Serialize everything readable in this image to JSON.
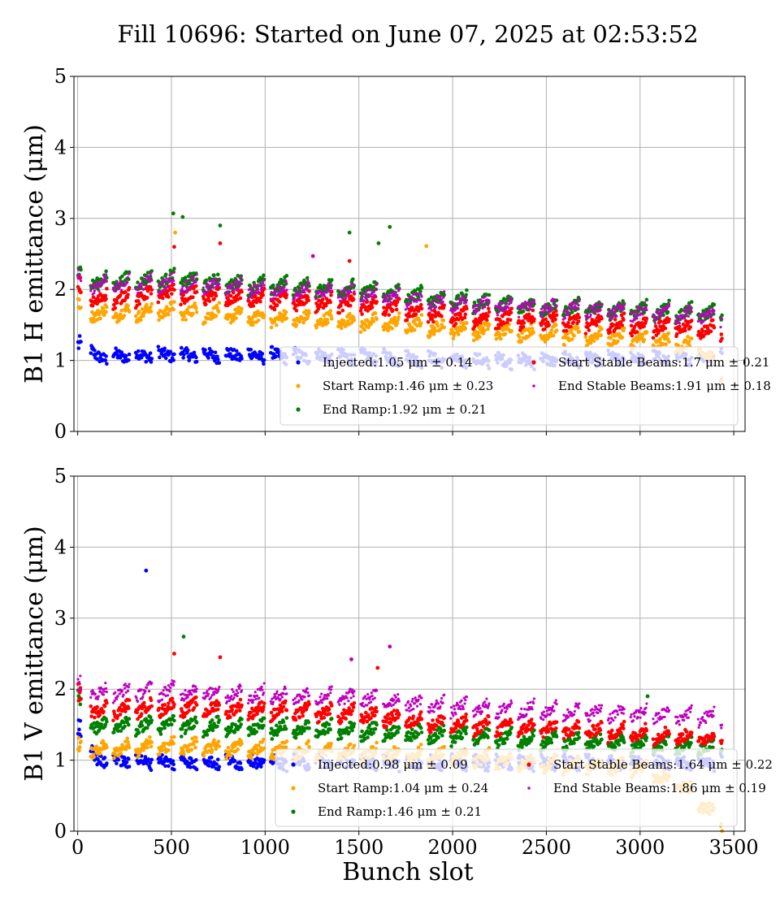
{
  "title": "Fill 10696: Started on June 07, 2025 at 02:53:52",
  "xlabel": "Bunch slot",
  "colors": {
    "Injected": "#0000ff",
    "Start Ramp": "#ffa500",
    "End Ramp": "#008000",
    "Start Stable Beams": "#ff0000",
    "End Stable Beams": "#bf00bf"
  },
  "chart_data": [
    {
      "type": "scatter",
      "ylabel": "B1 H emittance (μm)",
      "xlim": [
        -20,
        3560
      ],
      "ylim": [
        0,
        5
      ],
      "xticks": [
        0,
        500,
        1000,
        1500,
        2000,
        2500,
        3000,
        3500
      ],
      "yticks": [
        0,
        1,
        2,
        3,
        4,
        5
      ],
      "legend_position": "lower-right",
      "x_tick_labels_shown": false,
      "series": [
        {
          "name": "Injected",
          "legend": "Injected:1.05 μm ± 0.14",
          "mean": 1.05,
          "std": 0.14,
          "trend": [
            [
              0,
              1.22
            ],
            [
              100,
              1.05
            ],
            [
              500,
              1.08
            ],
            [
              1000,
              1.07
            ],
            [
              1500,
              1.05
            ],
            [
              2000,
              1.0
            ],
            [
              2500,
              1.0
            ],
            [
              3000,
              1.02
            ],
            [
              3400,
              1.05
            ]
          ]
        },
        {
          "name": "Start Ramp",
          "legend": "Start Ramp:1.46 μm ± 0.23",
          "mean": 1.46,
          "std": 0.23,
          "trend": [
            [
              0,
              1.85
            ],
            [
              100,
              1.65
            ],
            [
              500,
              1.7
            ],
            [
              1000,
              1.6
            ],
            [
              1500,
              1.55
            ],
            [
              2000,
              1.45
            ],
            [
              2500,
              1.38
            ],
            [
              3000,
              1.3
            ],
            [
              3300,
              1.2
            ],
            [
              3440,
              0.85
            ]
          ]
        },
        {
          "name": "End Ramp",
          "legend": "End Ramp:1.92 μm ± 0.21",
          "mean": 1.92,
          "std": 0.21,
          "trend": [
            [
              0,
              2.25
            ],
            [
              100,
              2.1
            ],
            [
              500,
              2.15
            ],
            [
              1000,
              2.05
            ],
            [
              1500,
              2.0
            ],
            [
              2000,
              1.85
            ],
            [
              2500,
              1.75
            ],
            [
              3000,
              1.7
            ],
            [
              3440,
              1.65
            ]
          ]
        },
        {
          "name": "Start Stable Beams",
          "legend": "Start Stable Beams:1.7 μm ± 0.21",
          "mean": 1.7,
          "std": 0.21,
          "trend": [
            [
              0,
              2.05
            ],
            [
              100,
              1.85
            ],
            [
              500,
              1.95
            ],
            [
              1000,
              1.85
            ],
            [
              1500,
              1.8
            ],
            [
              2000,
              1.62
            ],
            [
              2500,
              1.55
            ],
            [
              3000,
              1.5
            ],
            [
              3440,
              1.42
            ]
          ]
        },
        {
          "name": "End Stable Beams",
          "legend": "End Stable Beams:1.91 μm ± 0.18",
          "mean": 1.91,
          "std": 0.18,
          "trend": [
            [
              0,
              2.2
            ],
            [
              100,
              2.05
            ],
            [
              500,
              2.1
            ],
            [
              1000,
              2.0
            ],
            [
              1500,
              1.95
            ],
            [
              2000,
              1.8
            ],
            [
              2500,
              1.75
            ],
            [
              3000,
              1.68
            ],
            [
              3440,
              1.62
            ]
          ]
        }
      ],
      "outliers": [
        {
          "series": "End Ramp",
          "x": 510,
          "y": 3.07
        },
        {
          "series": "End Ramp",
          "x": 560,
          "y": 3.02
        },
        {
          "series": "End Ramp",
          "x": 760,
          "y": 2.9
        },
        {
          "series": "End Ramp",
          "x": 1450,
          "y": 2.8
        },
        {
          "series": "End Ramp",
          "x": 1665,
          "y": 2.88
        },
        {
          "series": "End Ramp",
          "x": 1605,
          "y": 2.65
        },
        {
          "series": "Start Ramp",
          "x": 1860,
          "y": 2.61
        },
        {
          "series": "Start Ramp",
          "x": 520,
          "y": 2.8
        },
        {
          "series": "Start Stable Beams",
          "x": 760,
          "y": 2.65
        },
        {
          "series": "Start Stable Beams",
          "x": 515,
          "y": 2.6
        },
        {
          "series": "End Stable Beams",
          "x": 1255,
          "y": 2.47
        },
        {
          "series": "Start Stable Beams",
          "x": 1450,
          "y": 2.4
        }
      ]
    },
    {
      "type": "scatter",
      "ylabel": "B1 V emittance (μm)",
      "xlim": [
        -20,
        3560
      ],
      "ylim": [
        0,
        5
      ],
      "xticks": [
        0,
        500,
        1000,
        1500,
        2000,
        2500,
        3000,
        3500
      ],
      "yticks": [
        0,
        1,
        2,
        3,
        4,
        5
      ],
      "legend_position": "lower-right",
      "x_tick_labels_shown": true,
      "series": [
        {
          "name": "Injected",
          "legend": "Injected:0.98 μm ± 0.09",
          "mean": 0.98,
          "std": 0.09,
          "trend": [
            [
              0,
              1.45
            ],
            [
              100,
              1.0
            ],
            [
              500,
              0.98
            ],
            [
              1000,
              0.97
            ],
            [
              1500,
              0.97
            ],
            [
              2000,
              0.96
            ],
            [
              2500,
              0.96
            ],
            [
              3000,
              0.97
            ],
            [
              3400,
              0.97
            ]
          ]
        },
        {
          "name": "Start Ramp",
          "legend": "Start Ramp:1.04 μm ± 0.24",
          "mean": 1.04,
          "std": 0.24,
          "trend": [
            [
              0,
              1.25
            ],
            [
              100,
              1.15
            ],
            [
              500,
              1.2
            ],
            [
              1000,
              1.15
            ],
            [
              1500,
              1.1
            ],
            [
              2000,
              1.05
            ],
            [
              2500,
              0.95
            ],
            [
              3000,
              0.9
            ],
            [
              3250,
              0.6
            ],
            [
              3440,
              0.1
            ]
          ]
        },
        {
          "name": "End Ramp",
          "legend": "End Ramp:1.46 μm ± 0.21",
          "mean": 1.46,
          "std": 0.21,
          "trend": [
            [
              0,
              1.9
            ],
            [
              100,
              1.48
            ],
            [
              500,
              1.5
            ],
            [
              1000,
              1.45
            ],
            [
              1500,
              1.42
            ],
            [
              2000,
              1.35
            ],
            [
              2500,
              1.28
            ],
            [
              3000,
              1.22
            ],
            [
              3440,
              1.18
            ]
          ]
        },
        {
          "name": "Start Stable Beams",
          "legend": "Start Stable Beams:1.64 μm ± 0.22",
          "mean": 1.64,
          "std": 0.22,
          "trend": [
            [
              0,
              1.95
            ],
            [
              100,
              1.7
            ],
            [
              500,
              1.75
            ],
            [
              1000,
              1.7
            ],
            [
              1500,
              1.65
            ],
            [
              2000,
              1.5
            ],
            [
              2500,
              1.45
            ],
            [
              3000,
              1.38
            ],
            [
              3440,
              1.3
            ]
          ]
        },
        {
          "name": "End Stable Beams",
          "legend": "End Stable Beams:1.86 μm ± 0.19",
          "mean": 1.86,
          "std": 0.19,
          "trend": [
            [
              0,
              2.1
            ],
            [
              100,
              1.95
            ],
            [
              500,
              1.98
            ],
            [
              1000,
              1.92
            ],
            [
              1500,
              1.88
            ],
            [
              2000,
              1.75
            ],
            [
              2500,
              1.7
            ],
            [
              3000,
              1.65
            ],
            [
              3440,
              1.6
            ]
          ]
        }
      ],
      "outliers": [
        {
          "series": "Injected",
          "x": 365,
          "y": 3.67
        },
        {
          "series": "End Ramp",
          "x": 565,
          "y": 2.74
        },
        {
          "series": "Start Stable Beams",
          "x": 515,
          "y": 2.5
        },
        {
          "series": "Start Stable Beams",
          "x": 760,
          "y": 2.45
        },
        {
          "series": "End Stable Beams",
          "x": 1665,
          "y": 2.6
        },
        {
          "series": "End Stable Beams",
          "x": 1460,
          "y": 2.42
        },
        {
          "series": "End Ramp",
          "x": 3040,
          "y": 1.9
        },
        {
          "series": "Start Stable Beams",
          "x": 1600,
          "y": 2.3
        }
      ]
    }
  ]
}
